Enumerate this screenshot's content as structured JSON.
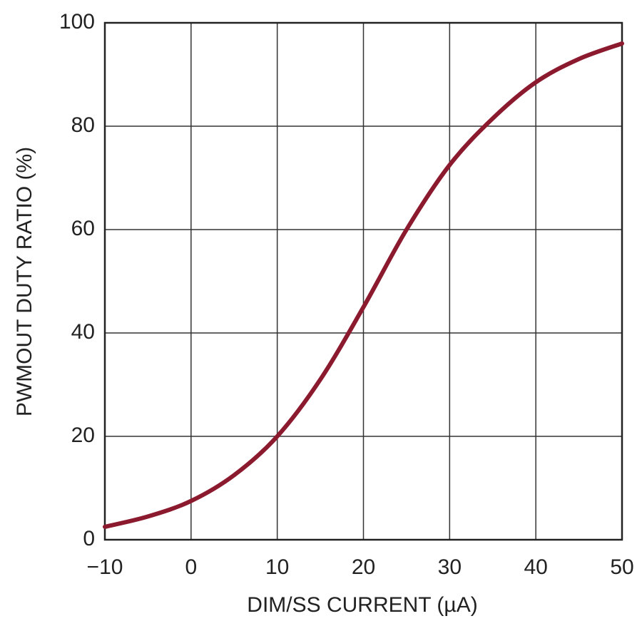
{
  "chart_data": {
    "type": "line",
    "x_label": "DIM/SS CURRENT (µA)",
    "y_label": "PWMOUT DUTY RATIO (%)",
    "x": [
      -10,
      -5,
      0,
      5,
      10,
      15,
      20,
      25,
      30,
      35,
      40,
      45,
      50
    ],
    "series": [
      {
        "name": "PWMOUT duty ratio",
        "color": "#8c1a2f",
        "values": [
          2.5,
          4.5,
          7.5,
          12.5,
          20,
          31,
          45,
          60,
          72.5,
          81.5,
          88.5,
          93,
          96
        ]
      }
    ],
    "xlim": [
      -10,
      50
    ],
    "xticks": [
      {
        "value": -10,
        "label": "−10"
      },
      0,
      10,
      20,
      30,
      40,
      50
    ],
    "ylim": [
      0,
      100
    ],
    "yticks": [
      0,
      20,
      40,
      60,
      80,
      100
    ],
    "grid": true
  }
}
